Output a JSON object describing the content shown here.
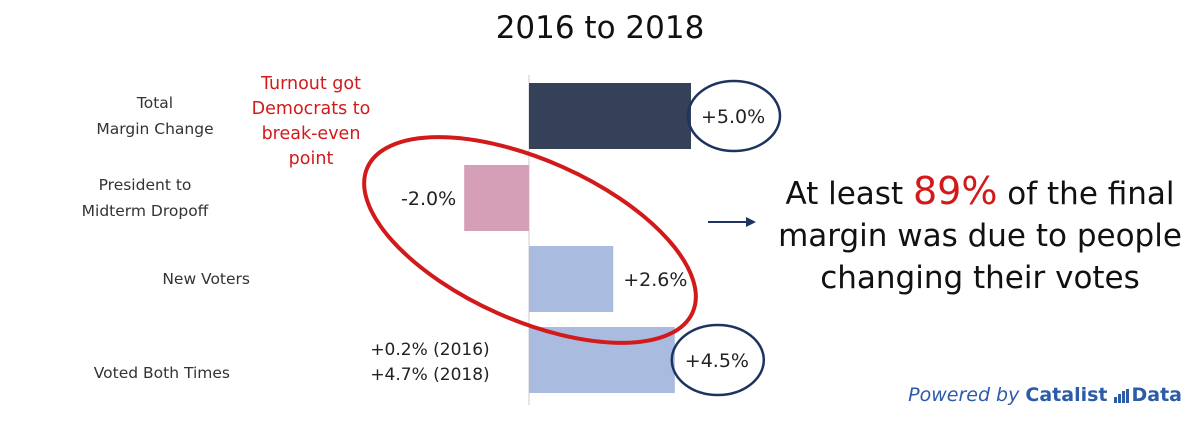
{
  "chart_data": {
    "type": "bar",
    "orientation": "horizontal",
    "title": "2016 to 2018",
    "categories": [
      "Total\nMargin Change",
      "President to\nMidterm Dropoff",
      "New Voters",
      "Voted Both Times"
    ],
    "values": [
      5.0,
      -2.0,
      2.6,
      4.5
    ],
    "value_labels": [
      "+5.0%",
      "-2.0%",
      "+2.6%",
      "+4.5%"
    ],
    "bar_colors": [
      "#344158",
      "#d59fb8",
      "#aabbe0",
      "#aabbe0"
    ],
    "circled_values": [
      0,
      3
    ],
    "grid": false,
    "legend": "none"
  },
  "annotations": {
    "turnout_note": [
      "Turnout got",
      "Democrats to",
      "break-even",
      "point"
    ],
    "voted_both_detail": [
      "+0.2% (2016)",
      "+4.7% (2018)"
    ],
    "arrow": "→",
    "callout_prefix": "At least ",
    "callout_highlight": "89%",
    "callout_line1_suffix": " of the final",
    "callout_line2": "margin was due to people",
    "callout_line3": "changing their votes",
    "ellipse_color": "#d21a1a",
    "circle_color": "#1e3460"
  },
  "footer": {
    "powered_by": "Powered by",
    "brand": "Catalist",
    "brand_suffix": "Data",
    "logo_icon": "bar-chart-icon"
  }
}
